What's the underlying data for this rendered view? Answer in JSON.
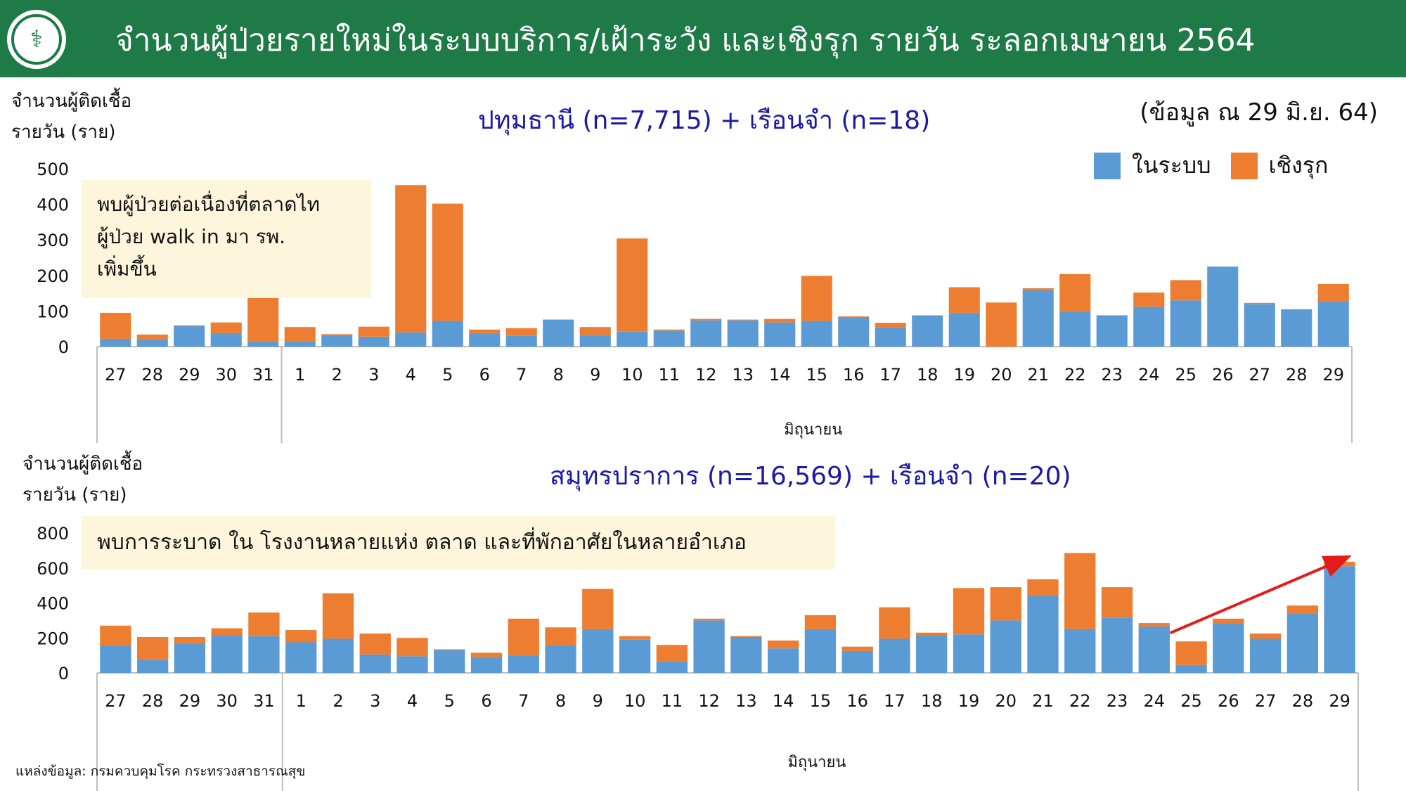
{
  "header": {
    "title": "จำนวนผู้ป่วยรายใหม่ในระบบบริการ/เฝ้าระวัง และเชิงรุก รายวัน  ระลอกเมษายน 2564",
    "logo": "ministry-of-public-health-seal"
  },
  "as_of": "(ข้อมูล ณ 29 มิ.ย. 64)",
  "legend": {
    "items": [
      {
        "label": "ในระบบ",
        "color": "#5b9bd5"
      },
      {
        "label": "เชิงรุก",
        "color": "#ed7d31"
      }
    ]
  },
  "source": "แหล่งข้อมูล: กรมควบคุมโรค กระทรวงสาธารณสุข",
  "chart_data": [
    {
      "type": "bar",
      "stacked": true,
      "title": "ปทุมธานี (n=7,715) + เรือนจำ (n=18)",
      "ylabel_lines": [
        "จำนวนผู้ติดเชื้อ",
        "รายวัน (ราย)"
      ],
      "xlabel": "มิถุนายน",
      "ylim": [
        0,
        500
      ],
      "yticks": [
        0,
        100,
        200,
        300,
        400,
        500
      ],
      "categories": [
        "27",
        "28",
        "29",
        "30",
        "31",
        "1",
        "2",
        "3",
        "4",
        "5",
        "6",
        "7",
        "8",
        "9",
        "10",
        "11",
        "12",
        "13",
        "14",
        "15",
        "16",
        "17",
        "18",
        "19",
        "20",
        "21",
        "22",
        "23",
        "24",
        "25",
        "26",
        "27",
        "28",
        "29"
      ],
      "series": [
        {
          "name": "ในระบบ",
          "color": "#5b9bd5",
          "values": [
            22,
            20,
            58,
            38,
            15,
            15,
            32,
            28,
            40,
            72,
            38,
            30,
            76,
            33,
            42,
            45,
            74,
            74,
            68,
            72,
            82,
            55,
            88,
            95,
            0,
            158,
            97,
            88,
            112,
            130,
            225,
            120,
            105,
            128
          ]
        },
        {
          "name": "เชิงรุก",
          "color": "#ed7d31",
          "values": [
            73,
            14,
            2,
            30,
            190,
            40,
            3,
            28,
            414,
            330,
            10,
            22,
            0,
            22,
            262,
            3,
            4,
            2,
            10,
            127,
            3,
            12,
            0,
            72,
            124,
            6,
            107,
            0,
            40,
            57,
            0,
            3,
            0,
            48
          ]
        }
      ],
      "highlight_index": 4,
      "note_lines": [
        "พบผู้ป่วยต่อเนื่องที่ตลาดไท",
        "ผู้ป่วย walk in มา รพ.",
        "เพิ่มขึ้น"
      ]
    },
    {
      "type": "bar",
      "stacked": true,
      "title": "สมุทรปราการ (n=16,569) + เรือนจำ (n=20)",
      "ylabel_lines": [
        "จำนวนผู้ติดเชื้อ",
        "รายวัน (ราย)"
      ],
      "xlabel": "มิถุนายน",
      "ylim": [
        0,
        800
      ],
      "yticks": [
        0,
        200,
        400,
        600,
        800
      ],
      "categories": [
        "27",
        "28",
        "29",
        "30",
        "31",
        "1",
        "2",
        "3",
        "4",
        "5",
        "6",
        "7",
        "8",
        "9",
        "10",
        "11",
        "12",
        "13",
        "14",
        "15",
        "16",
        "17",
        "18",
        "19",
        "20",
        "21",
        "22",
        "23",
        "24",
        "25",
        "26",
        "27",
        "28",
        "29"
      ],
      "series": [
        {
          "name": "ในระบบ",
          "color": "#5b9bd5",
          "values": [
            155,
            75,
            165,
            215,
            210,
            175,
            195,
            105,
            95,
            130,
            90,
            100,
            160,
            250,
            190,
            65,
            300,
            205,
            140,
            250,
            125,
            195,
            215,
            220,
            300,
            440,
            250,
            315,
            265,
            45,
            285,
            195,
            340,
            610
          ]
        },
        {
          "name": "เชิงรุก",
          "color": "#ed7d31",
          "values": [
            115,
            130,
            40,
            40,
            135,
            70,
            260,
            120,
            105,
            5,
            25,
            210,
            100,
            230,
            20,
            95,
            10,
            5,
            45,
            80,
            25,
            180,
            15,
            265,
            190,
            95,
            435,
            175,
            20,
            135,
            25,
            30,
            45,
            25
          ]
        }
      ],
      "note": "พบการระบาด ใน โรงงานหลายแห่ง ตลาด และที่พักอาศัยในหลายอำเภอ",
      "trend_arrow": {
        "from_index": 29,
        "to_index": 33,
        "color": "#e31b1b"
      }
    }
  ]
}
